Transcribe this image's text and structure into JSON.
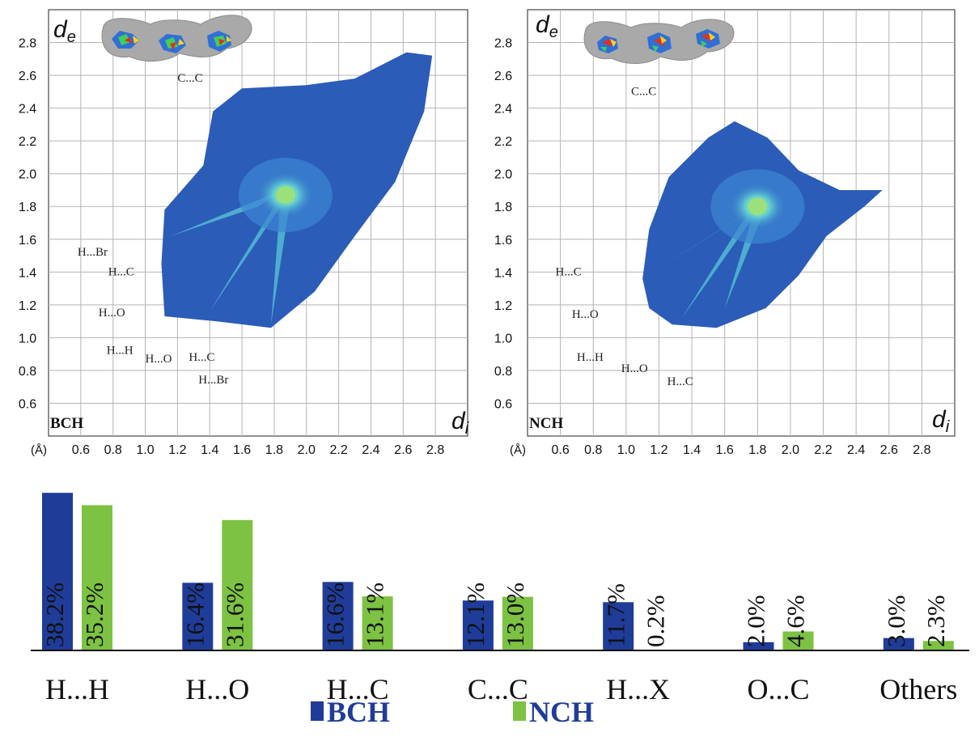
{
  "colors": {
    "bch": "#1f3c99",
    "nch": "#7dc242",
    "cloud_dark": "#2b5cb8",
    "cloud_mid": "#3d86d1",
    "cloud_light": "#5ac8d8",
    "cloud_core": "#9be07a",
    "grid": "#b4b4b4",
    "surface": "#a6a6a6"
  },
  "chart_data": [
    {
      "type": "scatter",
      "title": "BCH",
      "x_axis_symbol": "d",
      "x_axis_subscript": "i",
      "y_axis_symbol": "d",
      "y_axis_subscript": "e",
      "unit_label": "(Å)",
      "xlim": [
        0.4,
        3.0
      ],
      "ylim": [
        0.4,
        3.0
      ],
      "x_ticks": [
        "0.6",
        "0.8",
        "1.0",
        "1.2",
        "1.4",
        "1.6",
        "1.8",
        "2.0",
        "2.2",
        "2.4",
        "2.6",
        "2.8"
      ],
      "y_ticks": [
        "0.6",
        "0.8",
        "1.0",
        "1.2",
        "1.4",
        "1.6",
        "1.8",
        "2.0",
        "2.2",
        "2.4",
        "2.6",
        "2.8"
      ],
      "grid": true,
      "peak": [
        1.87,
        1.87
      ],
      "annotations": [
        {
          "text": "C...C",
          "x": 1.2,
          "y": 2.56
        },
        {
          "text": "H...Br",
          "x": 0.58,
          "y": 1.5
        },
        {
          "text": "H...C",
          "x": 0.77,
          "y": 1.38
        },
        {
          "text": "H...O",
          "x": 0.71,
          "y": 1.13
        },
        {
          "text": "H...H",
          "x": 0.76,
          "y": 0.9
        },
        {
          "text": "H...O",
          "x": 1.0,
          "y": 0.85
        },
        {
          "text": "H...C",
          "x": 1.27,
          "y": 0.86
        },
        {
          "text": "H...Br",
          "x": 1.33,
          "y": 0.72
        }
      ]
    },
    {
      "type": "scatter",
      "title": "NCH",
      "x_axis_symbol": "d",
      "x_axis_subscript": "i",
      "y_axis_symbol": "d",
      "y_axis_subscript": "e",
      "unit_label": "(Å)",
      "xlim": [
        0.4,
        3.0
      ],
      "ylim": [
        0.4,
        3.0
      ],
      "x_ticks": [
        "0.6",
        "0.8",
        "1.0",
        "1.2",
        "1.4",
        "1.6",
        "1.8",
        "2.0",
        "2.2",
        "2.4",
        "2.6",
        "2.8"
      ],
      "y_ticks": [
        "0.6",
        "0.8",
        "1.0",
        "1.2",
        "1.4",
        "1.6",
        "1.8",
        "2.0",
        "2.2",
        "2.4",
        "2.6",
        "2.8"
      ],
      "grid": true,
      "peak": [
        1.8,
        1.8
      ],
      "annotations": [
        {
          "text": "C...C",
          "x": 1.03,
          "y": 2.48
        },
        {
          "text": "H...C",
          "x": 0.57,
          "y": 1.38
        },
        {
          "text": "H...O",
          "x": 0.67,
          "y": 1.12
        },
        {
          "text": "H...H",
          "x": 0.7,
          "y": 0.86
        },
        {
          "text": "H...O",
          "x": 0.97,
          "y": 0.79
        },
        {
          "text": "H...C",
          "x": 1.25,
          "y": 0.71
        }
      ]
    },
    {
      "type": "bar",
      "categories": [
        "H...H",
        "H...O",
        "H...C",
        "C...C",
        "H...X",
        "O...C",
        "Others"
      ],
      "series": [
        {
          "name": "BCH",
          "values": [
            38.2,
            16.4,
            16.6,
            12.1,
            11.7,
            2.0,
            3.0
          ],
          "labels": [
            "38.2%",
            "16.4%",
            "16.6%",
            "12.1%",
            "11.7%",
            "2.0%",
            "3.0%"
          ]
        },
        {
          "name": "NCH",
          "values": [
            35.2,
            31.6,
            13.1,
            13.0,
            0.2,
            4.6,
            2.3
          ],
          "labels": [
            "35.2%",
            "31.6%",
            "13.1%",
            "13.0%",
            "0.2%",
            "4.6%",
            "2.3%"
          ]
        }
      ],
      "legend_position": "bottom"
    }
  ]
}
